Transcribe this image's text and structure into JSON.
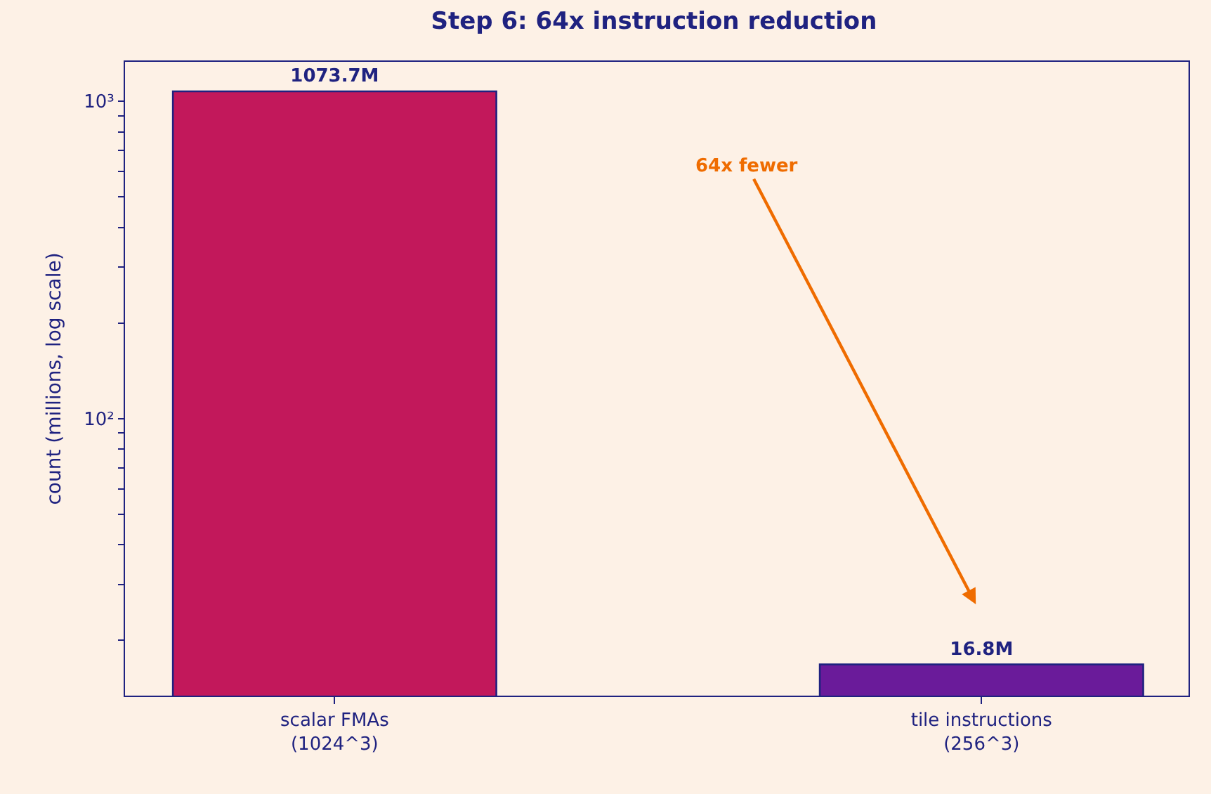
{
  "chart_data": {
    "type": "bar",
    "title": "Step 6: 64x instruction reduction",
    "ylabel": "count (millions, log scale)",
    "categories": [
      "scalar FMAs\n(1024^3)",
      "tile instructions\n(256^3)"
    ],
    "values": [
      1073.7,
      16.8
    ],
    "colors": [
      "#c2185b",
      "#6a1b9a"
    ],
    "value_labels": [
      "1073.7M",
      "16.8M"
    ],
    "log": "y",
    "ylim": [
      13.4,
      1330
    ],
    "yticks": [
      {
        "value": 20,
        "label": null
      },
      {
        "value": 30,
        "label": null
      },
      {
        "value": 40,
        "label": null
      },
      {
        "value": 50,
        "label": null
      },
      {
        "value": 60,
        "label": null
      },
      {
        "value": 70,
        "label": null
      },
      {
        "value": 80,
        "label": null
      },
      {
        "value": 90,
        "label": null
      },
      {
        "value": 100,
        "label": "10²"
      },
      {
        "value": 200,
        "label": null
      },
      {
        "value": 300,
        "label": null
      },
      {
        "value": 400,
        "label": null
      },
      {
        "value": 500,
        "label": null
      },
      {
        "value": 600,
        "label": null
      },
      {
        "value": 700,
        "label": null
      },
      {
        "value": 800,
        "label": null
      },
      {
        "value": 900,
        "label": null
      },
      {
        "value": 1000,
        "label": "10³"
      }
    ],
    "annotations": [
      "64x fewer"
    ],
    "grid": false,
    "legend": false
  }
}
